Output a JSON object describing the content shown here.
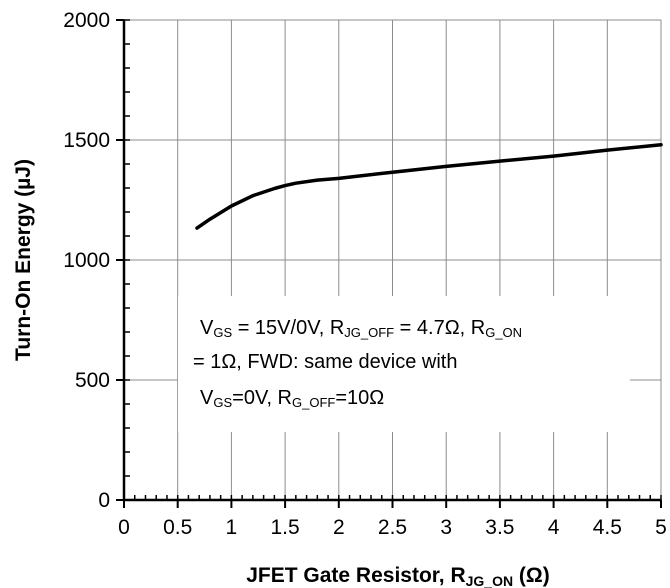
{
  "chart_data": {
    "type": "line",
    "xlabel": {
      "main": "JFET Gate Resistor, R",
      "sub": "JG_ON",
      "unit": " (Ω)"
    },
    "ylabel": "Turn-On Energy (µJ)",
    "xlim": [
      0,
      5
    ],
    "ylim": [
      0,
      2000
    ],
    "x_ticks": [
      0,
      0.5,
      1,
      1.5,
      2,
      2.5,
      3,
      3.5,
      4,
      4.5,
      5
    ],
    "x_tick_labels": [
      "0",
      "0.5",
      "1",
      "1.5",
      "2",
      "2.5",
      "3",
      "3.5",
      "4",
      "4.5",
      "5"
    ],
    "y_ticks": [
      0,
      500,
      1000,
      1500,
      2000
    ],
    "y_tick_labels": [
      "0",
      "500",
      "1000",
      "1500",
      "2000"
    ],
    "grid": true,
    "series": [
      {
        "color": "#000000",
        "x": [
          0.68,
          0.8,
          1.0,
          1.2,
          1.4,
          1.5,
          1.6,
          1.8,
          2.0,
          2.5,
          3.0,
          3.5,
          4.0,
          4.5,
          5.0
        ],
        "y": [
          1133,
          1170,
          1225,
          1268,
          1298,
          1310,
          1320,
          1333,
          1340,
          1366,
          1390,
          1412,
          1433,
          1458,
          1480
        ]
      }
    ],
    "annotation": {
      "line1": [
        {
          "t": "V"
        },
        {
          "t": "GS",
          "sub": true
        },
        {
          "t": " = 15V/0V,  R"
        },
        {
          "t": "JG_OFF",
          "sub": true
        },
        {
          "t": " = 4.7Ω, R"
        },
        {
          "t": "G_ON",
          "sub": true
        }
      ],
      "line2": [
        {
          "t": "= 1Ω, FWD: same device with"
        }
      ],
      "line3": [
        {
          "t": "V"
        },
        {
          "t": "GS",
          "sub": true
        },
        {
          "t": "=0V, R"
        },
        {
          "t": "G_OFF",
          "sub": true
        },
        {
          "t": "=10Ω"
        }
      ]
    }
  }
}
